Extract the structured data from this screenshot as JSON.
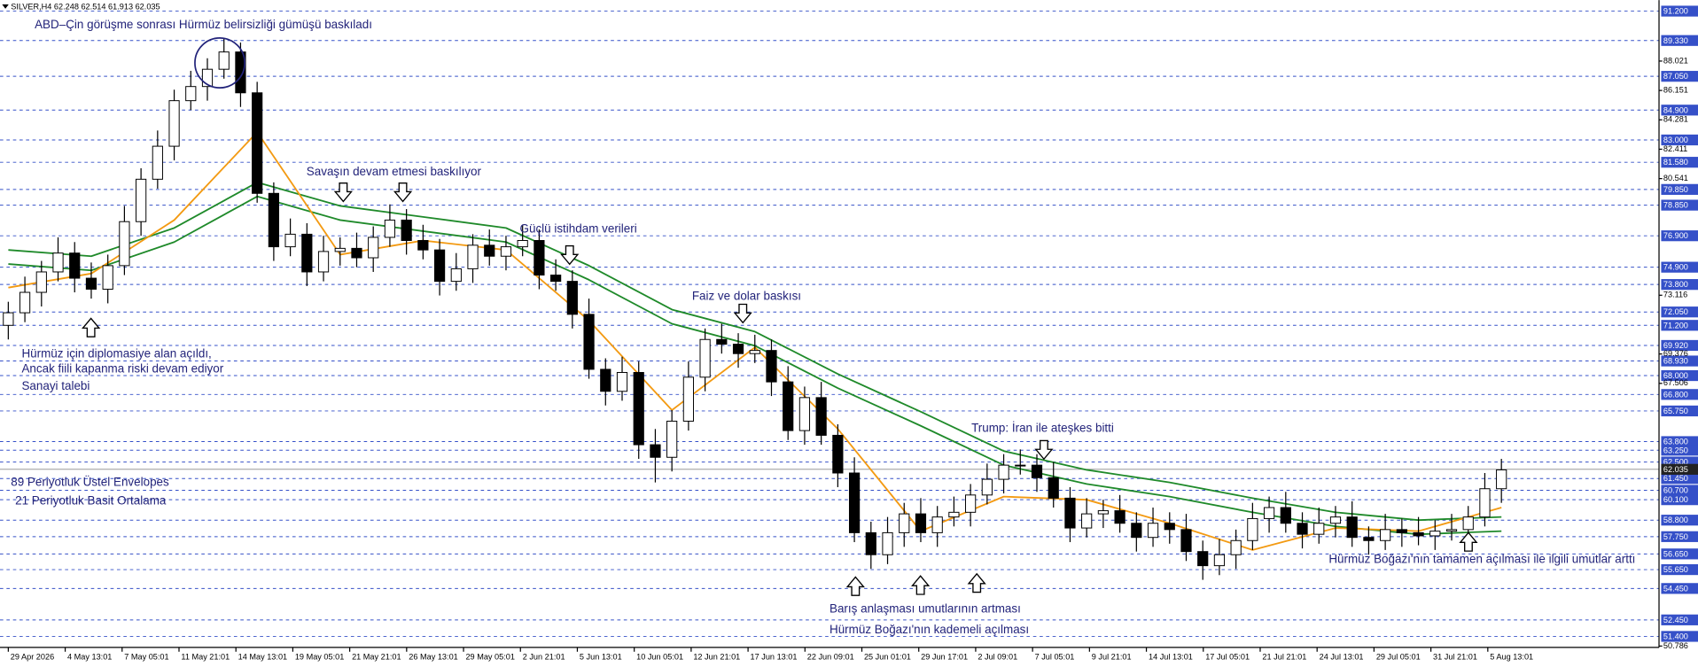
{
  "chart_data": {
    "type": "candlestick",
    "header": {
      "symbol": "SILVER,H4",
      "ohlc": [
        62.248,
        62.514,
        61.913,
        62.035
      ]
    },
    "xlim": [
      -0.5,
      99.5
    ],
    "ylim": [
      50.7,
      91.9
    ],
    "candles": {
      "open": [
        71.2,
        72.0,
        73.3,
        74.6,
        75.8,
        74.2,
        73.5,
        75.0,
        77.8,
        80.5,
        82.6,
        85.5,
        86.4,
        87.5,
        88.6,
        86.0,
        79.6,
        76.2,
        77.0,
        74.6,
        75.9,
        76.1,
        75.5,
        76.8,
        77.9,
        76.6,
        76.0,
        74.0,
        74.8,
        76.3,
        75.6,
        76.2,
        76.6,
        74.4,
        74.0,
        71.9,
        68.4,
        67.0,
        68.2,
        63.6,
        62.8,
        65.1,
        67.9,
        70.3,
        70.0,
        69.4,
        69.6,
        67.6,
        64.5,
        66.6,
        64.2,
        61.8,
        58.0,
        56.6,
        58.0,
        59.2,
        58.0,
        59.0,
        59.3,
        60.4,
        61.4,
        62.3,
        62.3,
        61.5,
        60.2,
        58.3,
        59.2,
        59.4,
        58.6,
        57.7,
        58.6,
        58.2,
        56.8,
        55.9,
        56.6,
        57.5,
        58.9,
        59.6,
        58.6,
        57.9,
        58.6,
        59.0,
        57.7,
        57.5,
        58.2,
        58.0,
        57.8,
        58.1,
        58.2,
        59.0,
        60.8
      ],
      "high": [
        72.7,
        74.3,
        75.3,
        76.8,
        76.5,
        75.2,
        75.7,
        78.8,
        81.2,
        83.6,
        86.2,
        87.4,
        88.2,
        89.5,
        89.2,
        86.7,
        80.3,
        78.0,
        77.7,
        76.9,
        76.8,
        77.1,
        77.5,
        78.9,
        78.6,
        77.6,
        76.7,
        75.8,
        77.0,
        77.3,
        76.9,
        77.6,
        77.3,
        75.4,
        74.7,
        72.9,
        69.1,
        69.2,
        68.9,
        64.6,
        65.8,
        68.9,
        71.0,
        71.3,
        70.7,
        70.6,
        70.3,
        68.6,
        67.3,
        67.6,
        64.9,
        62.8,
        58.7,
        59.0,
        59.9,
        60.2,
        59.7,
        60.3,
        61.1,
        62.4,
        63.0,
        63.3,
        63.0,
        62.5,
        60.9,
        60.2,
        60.1,
        60.4,
        59.3,
        59.6,
        59.3,
        59.2,
        57.5,
        57.6,
        58.2,
        59.9,
        60.3,
        60.6,
        59.3,
        59.6,
        59.7,
        60.0,
        58.4,
        59.2,
        58.9,
        59.0,
        58.8,
        59.2,
        59.7,
        61.8,
        62.7
      ],
      "low": [
        70.3,
        71.4,
        72.4,
        74.0,
        73.3,
        72.9,
        72.6,
        74.4,
        76.9,
        79.9,
        81.7,
        84.9,
        85.5,
        86.9,
        85.1,
        79.0,
        75.3,
        75.6,
        73.7,
        74.0,
        75.0,
        74.9,
        74.6,
        76.2,
        75.7,
        75.4,
        73.1,
        73.4,
        73.9,
        75.0,
        74.7,
        75.6,
        73.5,
        73.4,
        71.0,
        67.8,
        66.1,
        66.4,
        62.7,
        61.2,
        61.9,
        64.5,
        67.0,
        69.4,
        68.5,
        68.8,
        66.7,
        63.9,
        63.6,
        63.6,
        60.9,
        57.4,
        55.7,
        56.0,
        57.1,
        57.4,
        57.1,
        58.4,
        58.4,
        59.8,
        60.5,
        61.7,
        60.6,
        59.6,
        57.4,
        57.7,
        58.3,
        58.0,
        56.8,
        57.1,
        57.3,
        56.2,
        55.0,
        55.3,
        55.7,
        56.9,
        58.0,
        58.0,
        57.0,
        57.3,
        57.7,
        57.1,
        56.6,
        56.9,
        57.1,
        57.2,
        56.9,
        57.5,
        57.3,
        58.4,
        59.9
      ],
      "close": [
        72.0,
        73.3,
        74.6,
        75.8,
        74.2,
        73.5,
        75.0,
        77.8,
        80.5,
        82.6,
        85.5,
        86.4,
        87.5,
        88.6,
        86.0,
        79.6,
        76.2,
        77.0,
        74.6,
        75.9,
        76.1,
        75.5,
        76.8,
        77.9,
        76.6,
        76.0,
        74.0,
        74.8,
        76.3,
        75.6,
        76.2,
        76.6,
        74.4,
        74.0,
        71.9,
        68.4,
        67.0,
        68.2,
        63.6,
        62.8,
        65.1,
        67.9,
        70.3,
        70.0,
        69.4,
        69.6,
        67.6,
        64.5,
        66.6,
        64.2,
        61.8,
        58.0,
        56.6,
        58.0,
        59.2,
        58.0,
        59.0,
        59.3,
        60.4,
        61.4,
        62.3,
        62.3,
        61.5,
        60.2,
        58.3,
        59.2,
        59.4,
        58.6,
        57.7,
        58.6,
        58.2,
        56.8,
        55.9,
        56.6,
        57.5,
        58.9,
        59.6,
        58.6,
        57.9,
        58.6,
        59.0,
        57.7,
        57.5,
        58.2,
        58.0,
        57.8,
        58.1,
        58.2,
        59.0,
        60.8,
        62.0
      ],
      "up_color": "#ffffff",
      "down_color": "#000000",
      "edge_color": "#000000"
    },
    "series": [
      {
        "color": "#1f8a2a",
        "x": [
          0,
          5,
          10,
          15,
          20,
          25,
          30,
          35,
          40,
          45,
          50,
          55,
          60,
          65,
          70,
          75,
          80,
          85,
          90
        ],
        "values": [
          76.0,
          75.6,
          77.4,
          80.3,
          78.8,
          78.1,
          77.4,
          75.0,
          72.2,
          70.8,
          68.1,
          65.7,
          63.2,
          62.0,
          61.2,
          60.2,
          59.3,
          58.8,
          59.0
        ]
      },
      {
        "color": "#1f8a2a",
        "x": [
          0,
          5,
          10,
          15,
          20,
          25,
          30,
          35,
          40,
          45,
          50,
          55,
          60,
          65,
          70,
          75,
          80,
          85,
          90
        ],
        "values": [
          75.1,
          74.7,
          76.5,
          79.4,
          77.9,
          77.2,
          76.5,
          74.1,
          71.3,
          69.9,
          67.2,
          64.8,
          62.3,
          61.1,
          60.3,
          59.3,
          58.4,
          57.9,
          58.1
        ]
      },
      {
        "color": "#f39a12",
        "x": [
          0,
          5,
          10,
          15,
          20,
          25,
          30,
          35,
          40,
          45,
          50,
          55,
          60,
          65,
          70,
          75,
          80,
          85,
          90
        ],
        "values": [
          73.6,
          74.5,
          77.9,
          83.5,
          75.7,
          76.6,
          76.0,
          71.5,
          65.8,
          69.8,
          64.6,
          58.1,
          60.3,
          60.1,
          58.6,
          56.9,
          58.3,
          58.1,
          59.6
        ]
      }
    ],
    "level_color": "#3550c8",
    "levels": [
      {
        "value": 91.2,
        "label": "91.200"
      },
      {
        "value": 89.33,
        "label": "89.330"
      },
      {
        "value": 87.05,
        "label": "87.050"
      },
      {
        "value": 84.9,
        "label": "84.900"
      },
      {
        "value": 83.0,
        "label": "83.000"
      },
      {
        "value": 81.58,
        "label": "81.580"
      },
      {
        "value": 79.85,
        "label": "79.850"
      },
      {
        "value": 78.85,
        "label": "78.850"
      },
      {
        "value": 76.9,
        "label": "76.900"
      },
      {
        "value": 74.9,
        "label": "74.900"
      },
      {
        "value": 73.8,
        "label": "73.800"
      },
      {
        "value": 72.05,
        "label": "72.050"
      },
      {
        "value": 71.2,
        "label": "71.200"
      },
      {
        "value": 69.92,
        "label": "69.920"
      },
      {
        "value": 68.93,
        "label": "68.930"
      },
      {
        "value": 68.0,
        "label": "68.000"
      },
      {
        "value": 66.8,
        "label": "66.800"
      },
      {
        "value": 65.75,
        "label": "65.750"
      },
      {
        "value": 63.8,
        "label": "63.800"
      },
      {
        "value": 63.25,
        "label": "63.250"
      },
      {
        "value": 62.5,
        "label": "62.500"
      },
      {
        "value": 61.45,
        "label": "61.450"
      },
      {
        "value": 60.7,
        "label": "60.700"
      },
      {
        "value": 60.1,
        "label": "60.100"
      },
      {
        "value": 58.8,
        "label": "58.800"
      },
      {
        "value": 57.75,
        "label": "57.750"
      },
      {
        "value": 56.65,
        "label": "56.650"
      },
      {
        "value": 55.65,
        "label": "55.650"
      },
      {
        "value": 54.45,
        "label": "54.450"
      },
      {
        "value": 52.45,
        "label": "52.450"
      },
      {
        "value": 51.4,
        "label": "51.400"
      }
    ],
    "yticks": [
      88.021,
      86.151,
      84.281,
      82.411,
      80.541,
      73.116,
      69.376,
      67.506,
      50.786
    ],
    "last_price": 62.035,
    "xticks": [
      {
        "value": 0,
        "label": "29 Apr 2026"
      },
      {
        "value": 3.43,
        "label": "4 May 13:01"
      },
      {
        "value": 6.86,
        "label": "7 May 05:01"
      },
      {
        "value": 10.29,
        "label": "11 May 21:01"
      },
      {
        "value": 13.72,
        "label": "14 May 13:01"
      },
      {
        "value": 17.15,
        "label": "19 May 05:01"
      },
      {
        "value": 20.58,
        "label": "21 May 21:01"
      },
      {
        "value": 24.01,
        "label": "26 May 13:01"
      },
      {
        "value": 27.44,
        "label": "29 May 05:01"
      },
      {
        "value": 30.87,
        "label": "2 Jun 21:01"
      },
      {
        "value": 34.3,
        "label": "5 Jun 13:01"
      },
      {
        "value": 37.73,
        "label": "10 Jun 05:01"
      },
      {
        "value": 41.16,
        "label": "12 Jun 21:01"
      },
      {
        "value": 44.59,
        "label": "17 Jun 13:01"
      },
      {
        "value": 48.02,
        "label": "22 Jun 09:01"
      },
      {
        "value": 51.45,
        "label": "25 Jun 01:01"
      },
      {
        "value": 54.88,
        "label": "29 Jun 17:01"
      },
      {
        "value": 58.31,
        "label": "2 Jul 09:01"
      },
      {
        "value": 61.74,
        "label": "7 Jul 05:01"
      },
      {
        "value": 65.17,
        "label": "9 Jul 21:01"
      },
      {
        "value": 68.6,
        "label": "14 Jul 13:01"
      },
      {
        "value": 72.03,
        "label": "17 Jul 05:01"
      },
      {
        "value": 75.46,
        "label": "21 Jul 21:01"
      },
      {
        "value": 78.89,
        "label": "24 Jul 13:01"
      },
      {
        "value": 82.32,
        "label": "29 Jul 05:01"
      },
      {
        "value": 85.75,
        "label": "31 Jul 21:01"
      },
      {
        "value": 89.18,
        "label": "5 Aug 13:01"
      }
    ],
    "annotations": [
      "ABD–Çin görüşme sonrası Hürmüz belirsizliği gümüşü baskıladı",
      "Savaşın devam etmesi baskılıyor",
      "Güçlü istihdam verileri",
      "Faiz ve dolar baskısı",
      "Hürmüz için diplomasiye alan açıldı,",
      "Ancak fiili kapanma riski devam ediyor",
      "Sanayi talebi",
      "Trump: İran ile ateşkes bitti",
      "89 Periyotluk Üstel Envelopes",
      "21 Periyotluk Basit Ortalama",
      "Barış anlaşması umutlarının artması",
      "Hürmüz Boğazı'nın kademeli açılması",
      "Hürmüz Boğazı'nın tamamen açılması ile ilgili umutlar arttı"
    ]
  }
}
